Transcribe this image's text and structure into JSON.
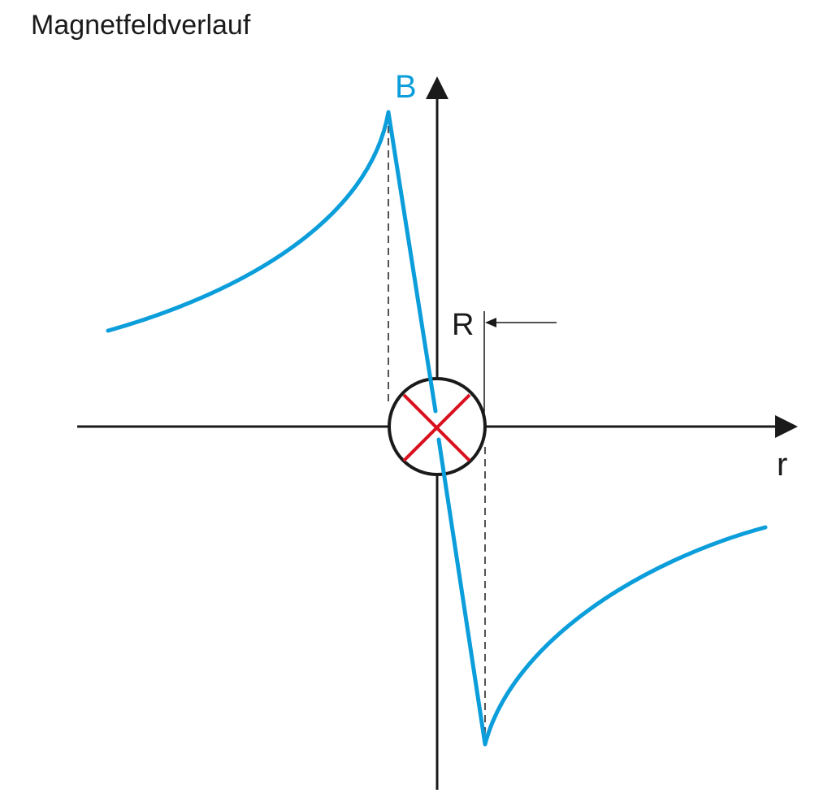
{
  "header": {
    "title": "Magnetfeldverlauf"
  },
  "labels": {
    "y_axis": "B",
    "x_axis": "r",
    "radius": "R"
  }
}
